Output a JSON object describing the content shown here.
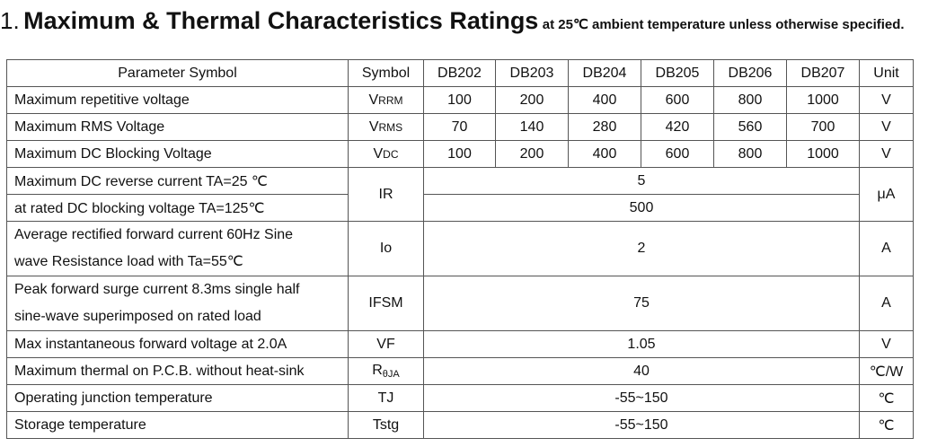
{
  "heading": {
    "number": "1.",
    "title": "Maximum & Thermal Characteristics Ratings",
    "subtitle": "at 25℃ ambient temperature unless otherwise specified."
  },
  "table": {
    "headers": {
      "param": "Parameter Symbol",
      "symbol": "Symbol",
      "models": [
        "DB202",
        "DB203",
        "DB204",
        "DB205",
        "DB206",
        "DB207"
      ],
      "unit": "Unit"
    },
    "rows": {
      "vrrm": {
        "param": "Maximum repetitive voltage",
        "sym_main": "V",
        "sym_sub": "RRM",
        "values": [
          "100",
          "200",
          "400",
          "600",
          "800",
          "1000"
        ],
        "unit": "V"
      },
      "vrms": {
        "param": "Maximum RMS Voltage",
        "sym_main": "V",
        "sym_sub": "RMS",
        "values": [
          "70",
          "140",
          "280",
          "420",
          "560",
          "700"
        ],
        "unit": "V"
      },
      "vdc": {
        "param": "Maximum DC Blocking Voltage",
        "sym_main": "V",
        "sym_sub": "DC",
        "values": [
          "100",
          "200",
          "400",
          "600",
          "800",
          "1000"
        ],
        "unit": "V"
      },
      "ir": {
        "param_line1": "Maximum DC reverse current TA=25 ℃",
        "param_line2": "at rated DC blocking voltage TA=125℃",
        "symbol": "IR",
        "value1": "5",
        "value2": "500",
        "unit": "μA"
      },
      "io": {
        "param_line1": "Average rectified forward current 60Hz Sine",
        "param_line2": "wave Resistance load with Ta=55℃",
        "symbol": "Io",
        "value": "2",
        "unit": "A"
      },
      "ifsm": {
        "param_line1": "Peak forward surge current 8.3ms single half",
        "param_line2": "sine-wave superimposed on rated load",
        "symbol": "IFSM",
        "value": "75",
        "unit": "A"
      },
      "vf": {
        "param": "Max instantaneous forward voltage at 2.0A",
        "symbol": "VF",
        "value": "1.05",
        "unit": "V"
      },
      "rtheta": {
        "param": "Maximum thermal on P.C.B. without heat-sink",
        "sym_main": "R",
        "sym_sub": "θJA",
        "value": "40",
        "unit": "℃/W"
      },
      "tj": {
        "param": "Operating junction temperature",
        "symbol": "TJ",
        "value": "-55~150",
        "unit": "℃"
      },
      "tstg": {
        "param": "Storage temperature",
        "symbol": "Tstg",
        "value": "-55~150",
        "unit": "℃"
      }
    }
  }
}
